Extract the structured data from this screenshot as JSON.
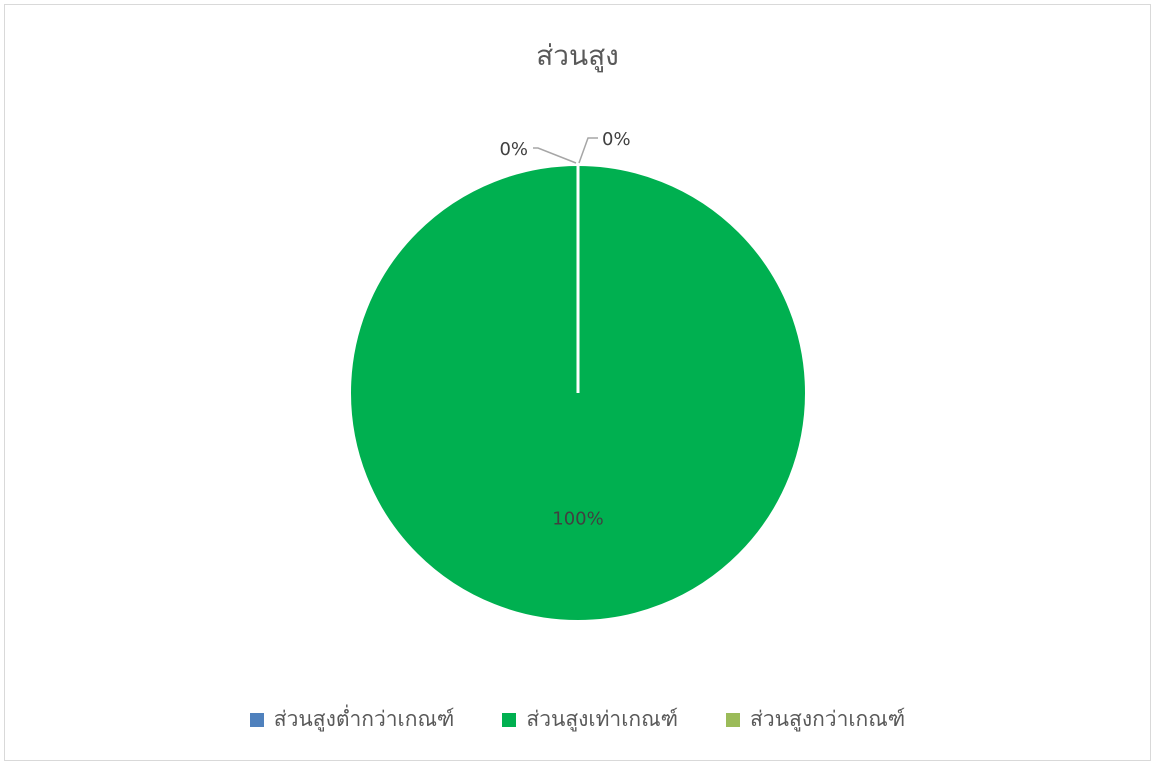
{
  "chart_data": {
    "type": "pie",
    "title": "ส่วนสูง",
    "categories": [
      "ส่วนสูงต่ำกว่าเกณฑ์",
      "ส่วนสูงเท่าเกณฑ์",
      "ส่วนสูงกว่าเกณฑ์"
    ],
    "values": [
      0,
      100,
      0
    ],
    "data_labels": [
      "0%",
      "100%",
      "0%"
    ],
    "colors": [
      "#4f81bd",
      "#00b050",
      "#9bbb59"
    ],
    "legend_position": "bottom"
  }
}
